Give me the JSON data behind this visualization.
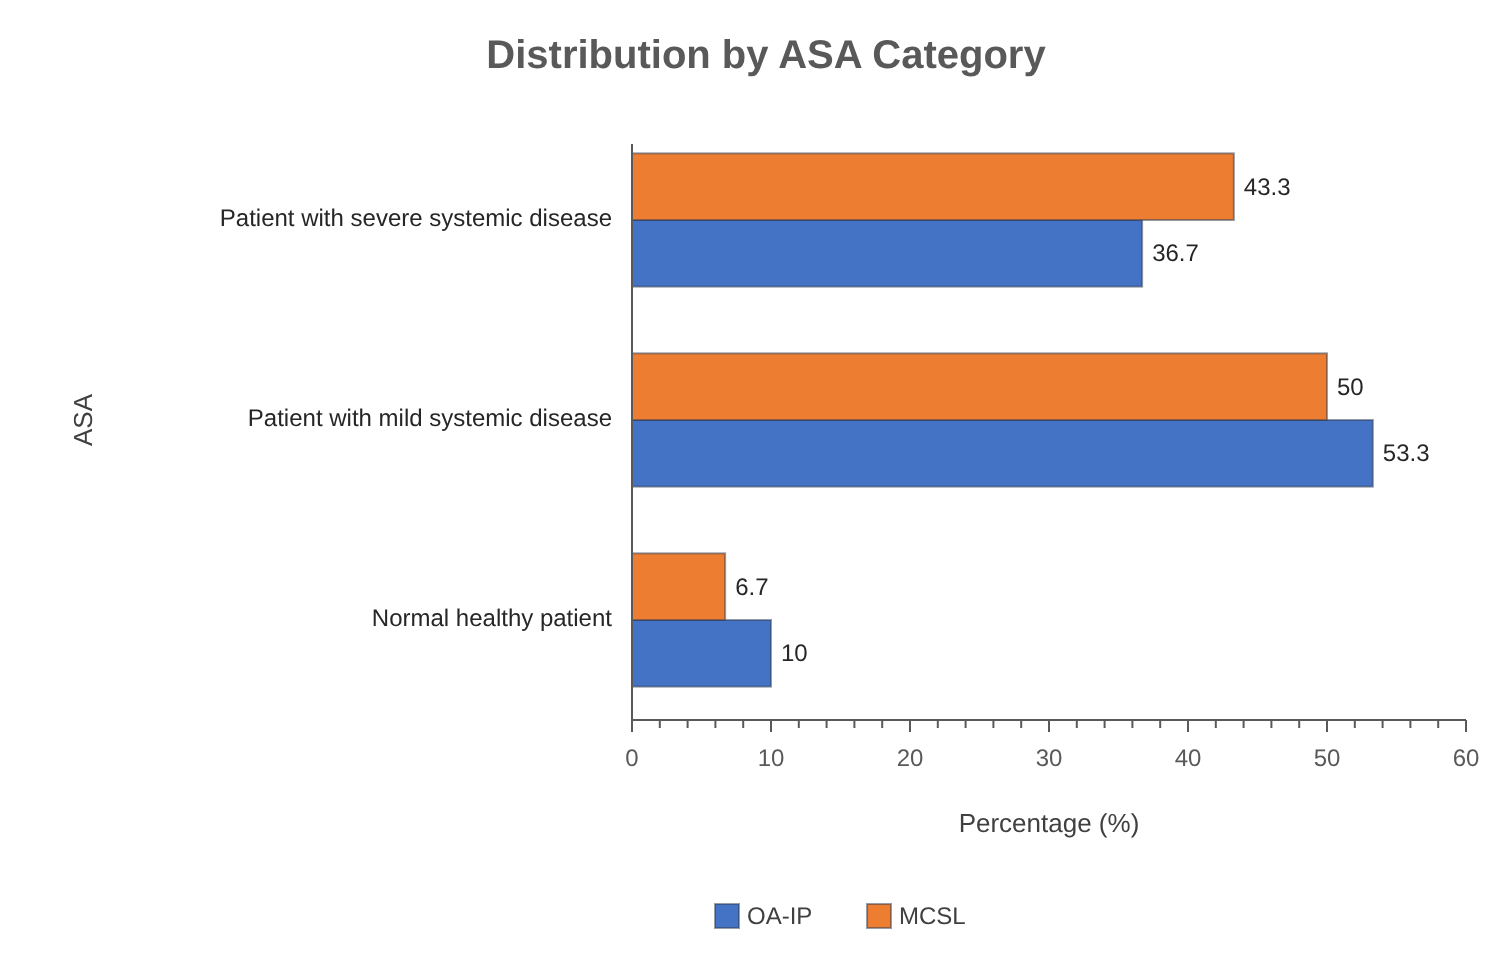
{
  "chart_data": {
    "type": "bar",
    "orientation": "horizontal",
    "title": "Distribution by ASA Category",
    "xlabel": "Percentage (%)",
    "ylabel": "ASA",
    "categories": [
      "Patient with severe systemic disease",
      "Patient with mild systemic disease",
      "Normal healthy patient"
    ],
    "series": [
      {
        "name": "OA-IP",
        "color": "#4472c4",
        "values": [
          36.7,
          53.3,
          10
        ]
      },
      {
        "name": "MCSL",
        "color": "#ed7d31",
        "values": [
          43.3,
          50,
          6.7
        ]
      }
    ],
    "xlim": [
      0,
      60
    ],
    "xticks": [
      0,
      {
        "value": 2,
        "label": null
      },
      {
        "value": 4,
        "label": null
      },
      {
        "value": 6,
        "label": null
      },
      {
        "value": 8,
        "label": null
      },
      10,
      {
        "value": 12,
        "label": null
      },
      {
        "value": 14,
        "label": null
      },
      {
        "value": 16,
        "label": null
      },
      {
        "value": 18,
        "label": null
      },
      20,
      {
        "value": 22,
        "label": null
      },
      {
        "value": 24,
        "label": null
      },
      {
        "value": 26,
        "label": null
      },
      {
        "value": 28,
        "label": null
      },
      30,
      {
        "value": 32,
        "label": null
      },
      {
        "value": 34,
        "label": null
      },
      {
        "value": 36,
        "label": null
      },
      {
        "value": 38,
        "label": null
      },
      40,
      {
        "value": 42,
        "label": null
      },
      {
        "value": 44,
        "label": null
      },
      {
        "value": 46,
        "label": null
      },
      {
        "value": 48,
        "label": null
      },
      50,
      {
        "value": 52,
        "label": null
      },
      {
        "value": 54,
        "label": null
      },
      {
        "value": 56,
        "label": null
      },
      {
        "value": 58,
        "label": null
      },
      60
    ],
    "data_labels": true,
    "legend": "bottom",
    "grid": false
  }
}
